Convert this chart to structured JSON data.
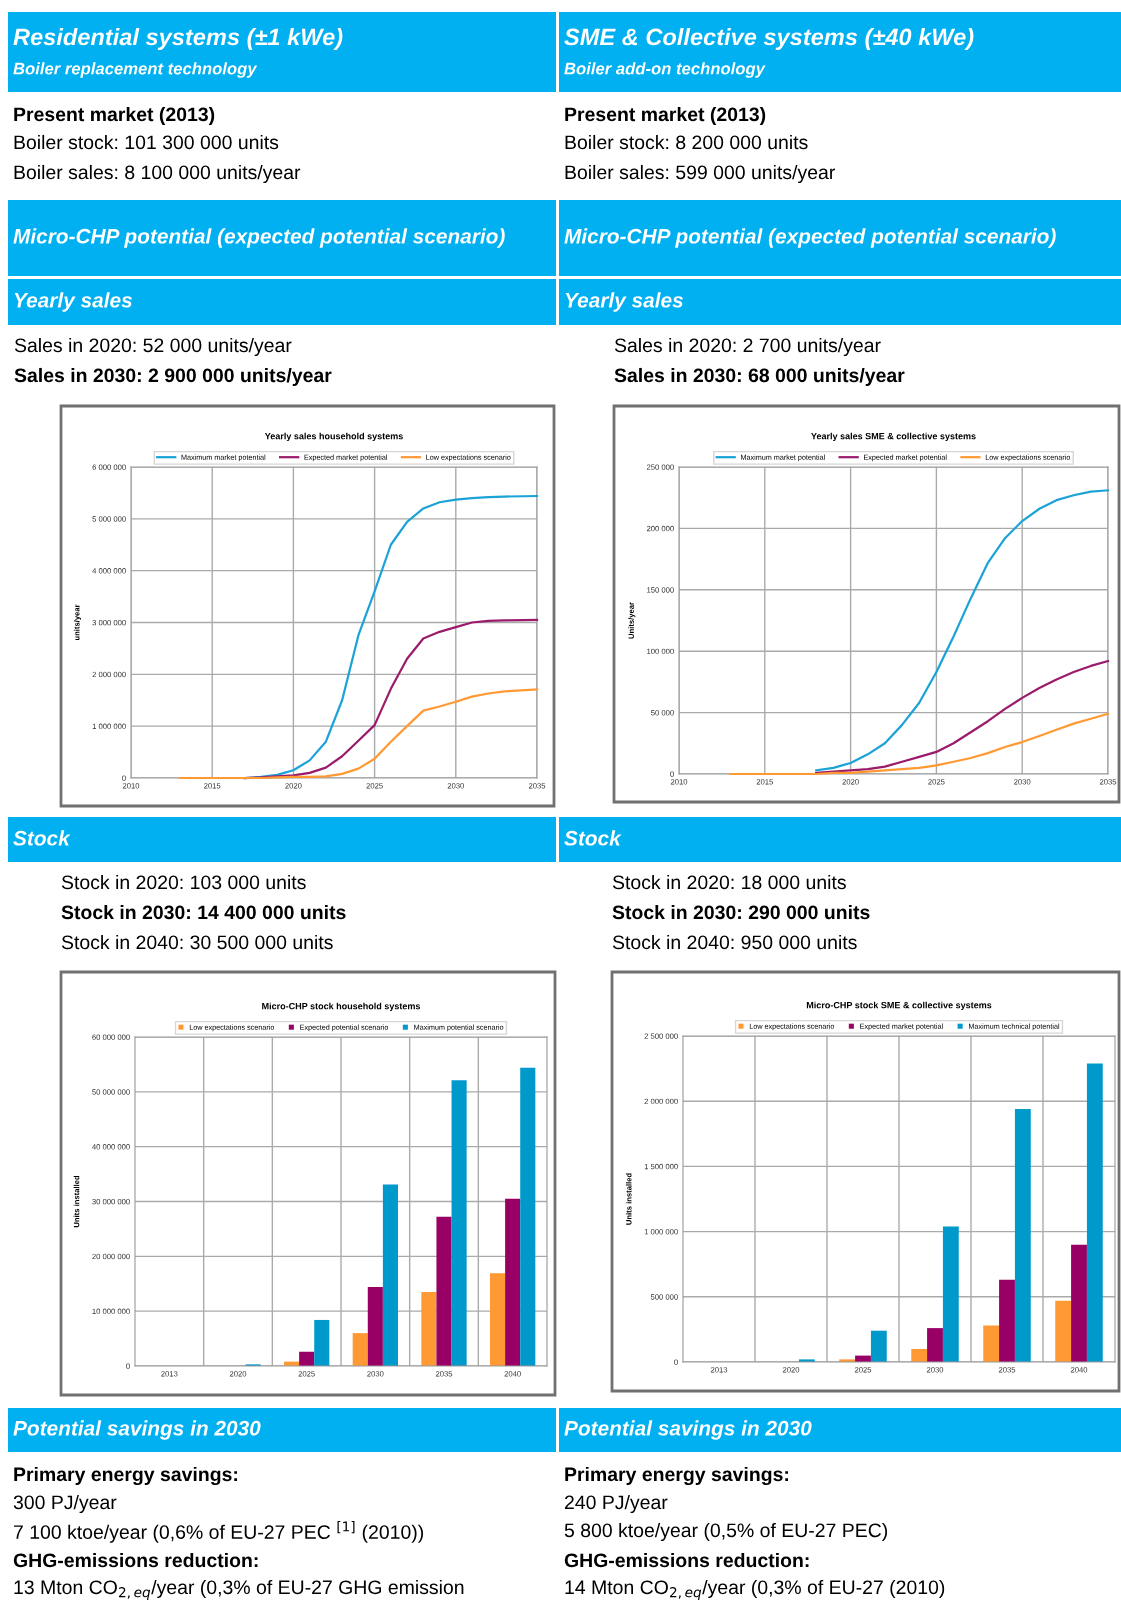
{
  "chart_data": [
    {
      "type": "other",
      "annotations": [
        "Residential systems (±1 kWe)",
        "Boiler replacement technology",
        "Present market (2013)",
        "Boiler stock: 101 300 000 units",
        "Boiler sales: 8 100 000 units/year",
        "Micro-CHP potential (expected potential scenario)",
        "Yearly sales",
        "Sales in 2020: 52 000 units/year",
        "Sales in 2030: 2 900 000 units/year"
      ]
    },
    {
      "type": "other",
      "annotations": [
        "SME & Collective systems (±40 kWe)",
        "Boiler add-on technology",
        "Present market (2013)",
        "Boiler stock: 8 200 000 units",
        "Boiler sales: 599 000 units/year",
        "Micro-CHP potential (expected potential scenario)",
        "Yearly sales",
        "Sales in 2020: 2 700 units/year",
        "Sales in 2030: 68 000 units/year"
      ]
    },
    {
      "type": "line",
      "title": "Yearly sales household systems",
      "ylabel": "units/year",
      "legend": "top",
      "grid": true,
      "marker": "none",
      "line_style": "solid",
      "xlim": [
        2010,
        2035
      ],
      "xticks": [
        2010,
        2015,
        2020,
        2025,
        2030,
        2035
      ],
      "ylim": [
        0,
        6000000
      ],
      "yticks": [
        0,
        {
          "value": 1000000,
          "label": "1 000 000"
        },
        {
          "value": 2000000,
          "label": "2 000 000"
        },
        {
          "value": 3000000,
          "label": "3 000 000"
        },
        {
          "value": 4000000,
          "label": "4 000 000"
        },
        {
          "value": 5000000,
          "label": "5 000 000"
        },
        {
          "value": 6000000,
          "label": "6 000 000"
        }
      ],
      "x": [
        2013,
        2015,
        2017,
        2018,
        2019,
        2020,
        2021,
        2022,
        2023,
        2024,
        2025,
        2026,
        2027,
        2028,
        2029,
        2030,
        2031,
        2032,
        2033,
        2035
      ],
      "series": [
        {
          "name": "Maximum market potential",
          "color": "#1ba3d7",
          "values": [
            null,
            null,
            0,
            20000,
            60000,
            150000,
            340000,
            700000,
            1500000,
            2750000,
            3600000,
            4500000,
            4940000,
            5200000,
            5320000,
            5370000,
            5400000,
            5420000,
            5430000,
            5440000
          ]
        },
        {
          "name": "Expected market potential",
          "color": "#9b1b6b",
          "values": [
            null,
            null,
            0,
            10000,
            30000,
            50000,
            100000,
            200000,
            420000,
            720000,
            1020000,
            1720000,
            2300000,
            2690000,
            2820000,
            2910000,
            3000000,
            3030000,
            3040000,
            3050000
          ]
        },
        {
          "name": "Low expectations scenario",
          "color": "#ff9933",
          "values": [
            0,
            0,
            0,
            0,
            10000,
            20000,
            20000,
            30000,
            80000,
            180000,
            370000,
            700000,
            1000000,
            1300000,
            1380000,
            1470000,
            1570000,
            1630000,
            1670000,
            1710000
          ]
        }
      ]
    },
    {
      "type": "line",
      "title": "Yearly sales SME & collective systems",
      "ylabel": "Units/year",
      "legend": "top",
      "grid": true,
      "marker": "none",
      "line_style": "solid",
      "xlim": [
        2010,
        2035
      ],
      "xticks": [
        2010,
        2015,
        2020,
        2025,
        2030,
        2035
      ],
      "ylim": [
        0,
        250000
      ],
      "yticks": [
        0,
        {
          "value": 50000,
          "label": "50 000"
        },
        {
          "value": 100000,
          "label": "100 000"
        },
        {
          "value": 150000,
          "label": "150 000"
        },
        {
          "value": 200000,
          "label": "200 000"
        },
        {
          "value": 250000,
          "label": "250 000"
        }
      ],
      "x": [
        2013,
        2016,
        2018,
        2019,
        2020,
        2021,
        2022,
        2023,
        2024,
        2025,
        2026,
        2027,
        2028,
        2029,
        2030,
        2031,
        2032,
        2033,
        2034,
        2035
      ],
      "series": [
        {
          "name": "Maximum market potential",
          "color": "#1ba3d7",
          "values": [
            null,
            null,
            3000,
            5000,
            9000,
            16000,
            25000,
            40000,
            58000,
            83000,
            112000,
            143000,
            172000,
            192000,
            206000,
            216000,
            223000,
            227000,
            230000,
            231000
          ]
        },
        {
          "name": "Expected market potential",
          "color": "#9b1b6b",
          "values": [
            null,
            null,
            1000,
            2000,
            3000,
            4000,
            6000,
            10000,
            14000,
            18000,
            25000,
            34000,
            43000,
            53000,
            62000,
            70000,
            77000,
            83000,
            88000,
            92000
          ]
        },
        {
          "name": "Low expectations scenario",
          "color": "#ff9933",
          "values": [
            0,
            0,
            0,
            1000,
            1000,
            2000,
            3000,
            4000,
            5000,
            7000,
            10000,
            13000,
            17000,
            22000,
            26000,
            31000,
            36000,
            41000,
            45000,
            49000
          ]
        }
      ]
    },
    {
      "type": "other",
      "annotations": [
        "Stock",
        "Stock in 2020: 103 000 units",
        "Stock in 2030: 14 400 000 units",
        "Stock in 2040: 30 500 000 units"
      ]
    },
    {
      "type": "other",
      "annotations": [
        "Stock",
        "Stock in 2020: 18 000 units",
        "Stock in 2030: 290 000 units",
        "Stock in 2040: 950 000 units"
      ]
    },
    {
      "type": "bar",
      "title": "Micro-CHP stock household systems",
      "ylabel": "Units installed",
      "legend": "top",
      "grid": true,
      "categories": [
        "2013",
        "2020",
        "2025",
        "2030",
        "2035",
        "2040"
      ],
      "ylim": [
        0,
        60000000
      ],
      "yticks": [
        0,
        {
          "value": 10000000,
          "label": "10 000 000"
        },
        {
          "value": 20000000,
          "label": "20 000 000"
        },
        {
          "value": 30000000,
          "label": "30 000 000"
        },
        {
          "value": 40000000,
          "label": "40 000 000"
        },
        {
          "value": 50000000,
          "label": "50 000 000"
        },
        {
          "value": 60000000,
          "label": "60 000 000"
        }
      ],
      "series": [
        {
          "name": "Low expectations scenario",
          "color": "#ff9933",
          "values": [
            0,
            0,
            800000,
            6000000,
            13500000,
            16900000
          ]
        },
        {
          "name": "Expected potential scenario",
          "color": "#990066",
          "values": [
            0,
            null,
            2600000,
            14400000,
            27200000,
            30500000
          ]
        },
        {
          "name": "Maximum potential scenario",
          "color": "#0099cc",
          "values": [
            0,
            300000,
            8400000,
            33100000,
            52100000,
            54400000
          ]
        }
      ]
    },
    {
      "type": "bar",
      "title": "Micro-CHP stock SME & collective systems",
      "ylabel": "Units installed",
      "legend": "top",
      "grid": true,
      "categories": [
        "2013",
        "2020",
        "2025",
        "2030",
        "2035",
        "2040"
      ],
      "ylim": [
        0,
        2500000
      ],
      "yticks": [
        0,
        {
          "value": 500000,
          "label": "500 000"
        },
        {
          "value": 1000000,
          "label": "1 000 000"
        },
        {
          "value": 1500000,
          "label": "1 500 000"
        },
        {
          "value": 2000000,
          "label": "2 000 000"
        },
        {
          "value": 2500000,
          "label": "2 500 000"
        }
      ],
      "series": [
        {
          "name": "Low expectations scenario",
          "color": "#ff9933",
          "values": [
            0,
            0,
            20000,
            100000,
            280000,
            470000
          ]
        },
        {
          "name": "Expected market potential",
          "color": "#990066",
          "values": [
            0,
            null,
            49000,
            260000,
            630000,
            900000
          ]
        },
        {
          "name": "Maximum technical potential",
          "color": "#0099cc",
          "values": [
            0,
            20000,
            240000,
            1040000,
            1940000,
            2290000
          ]
        }
      ]
    },
    {
      "type": "other",
      "annotations": [
        "Potential savings in 2030",
        "Primary energy savings:",
        "300 PJ/year",
        "7 100 ktoe/year (0,6% of EU-27 PEC $^{[1]}$ (2010))",
        "GHG-emissions reduction:",
        "13 Mton CO$_{2,eq}$/year (0,3% of EU-27 GHG emission"
      ]
    },
    {
      "type": "other",
      "annotations": [
        "Potential savings in 2030",
        "Primary energy savings:",
        "240 PJ/year",
        "5 800 ktoe/year (0,5% of EU-27 PEC)",
        "GHG-emissions reduction:",
        "14 Mton CO$_{2,eq}$/year (0,3% of EU-27 (2010)"
      ]
    }
  ]
}
